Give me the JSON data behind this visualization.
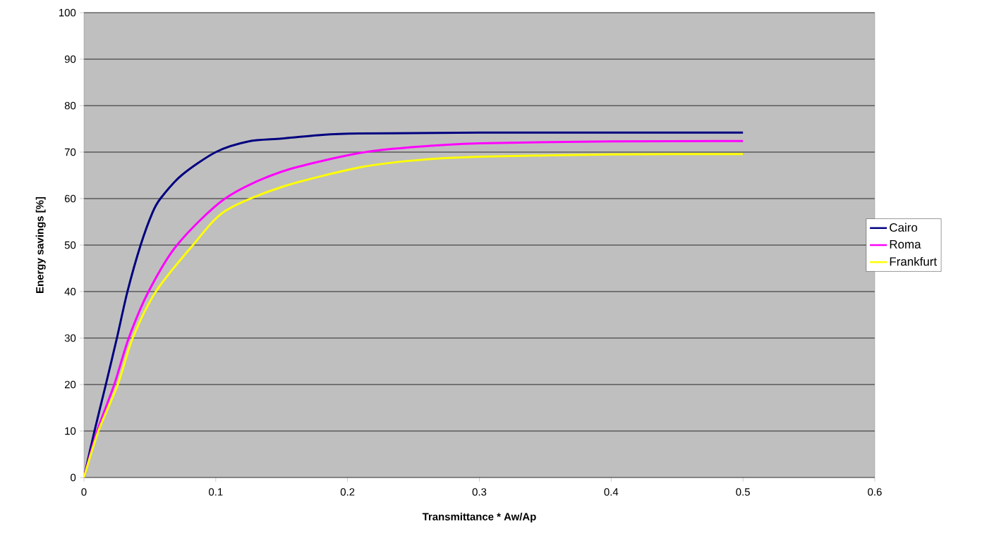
{
  "chart_data": {
    "type": "line",
    "xlabel": "Transmittance * Aw/Ap",
    "ylabel": "Energy savings [%]",
    "xlim": [
      0,
      0.6
    ],
    "ylim": [
      0,
      100
    ],
    "xticks": [
      0,
      0.1,
      0.2,
      0.3,
      0.4,
      0.5,
      0.6
    ],
    "yticks": [
      0,
      10,
      20,
      30,
      40,
      50,
      60,
      70,
      80,
      90,
      100
    ],
    "grid": "y",
    "legend": "right",
    "marker": "none",
    "line_style": "solid",
    "series": [
      {
        "name": "Cairo",
        "color": "#000080",
        "x": [
          0,
          0.008,
          0.0166,
          0.025,
          0.033,
          0.043,
          0.052,
          0.058,
          0.074,
          0.1,
          0.125,
          0.15,
          0.181,
          0.209,
          0.25,
          0.3,
          0.4,
          0.5
        ],
        "values": [
          0,
          10,
          20,
          30,
          40,
          50,
          57,
          60,
          65,
          70,
          72.3,
          72.9,
          73.7,
          74,
          74.1,
          74.2,
          74.2,
          74.2
        ]
      },
      {
        "name": "Roma",
        "color": "#ff00ff",
        "x": [
          0,
          0.01,
          0.023,
          0.034,
          0.049,
          0.0706,
          0.107,
          0.15,
          0.209,
          0.25,
          0.3,
          0.4,
          0.5
        ],
        "values": [
          0,
          10,
          20,
          30,
          40,
          50,
          60,
          65.8,
          69.8,
          71.1,
          71.9,
          72.3,
          72.4
        ]
      },
      {
        "name": "Frankfurt",
        "color": "#ffff00",
        "x": [
          0,
          0.011,
          0.0257,
          0.037,
          0.0546,
          0.0827,
          0.107,
          0.15,
          0.209,
          0.25,
          0.3,
          0.4,
          0.5
        ],
        "values": [
          0,
          10,
          20,
          30,
          40,
          50,
          57.3,
          62.5,
          66.7,
          68.2,
          69,
          69.5,
          69.6
        ]
      }
    ]
  }
}
